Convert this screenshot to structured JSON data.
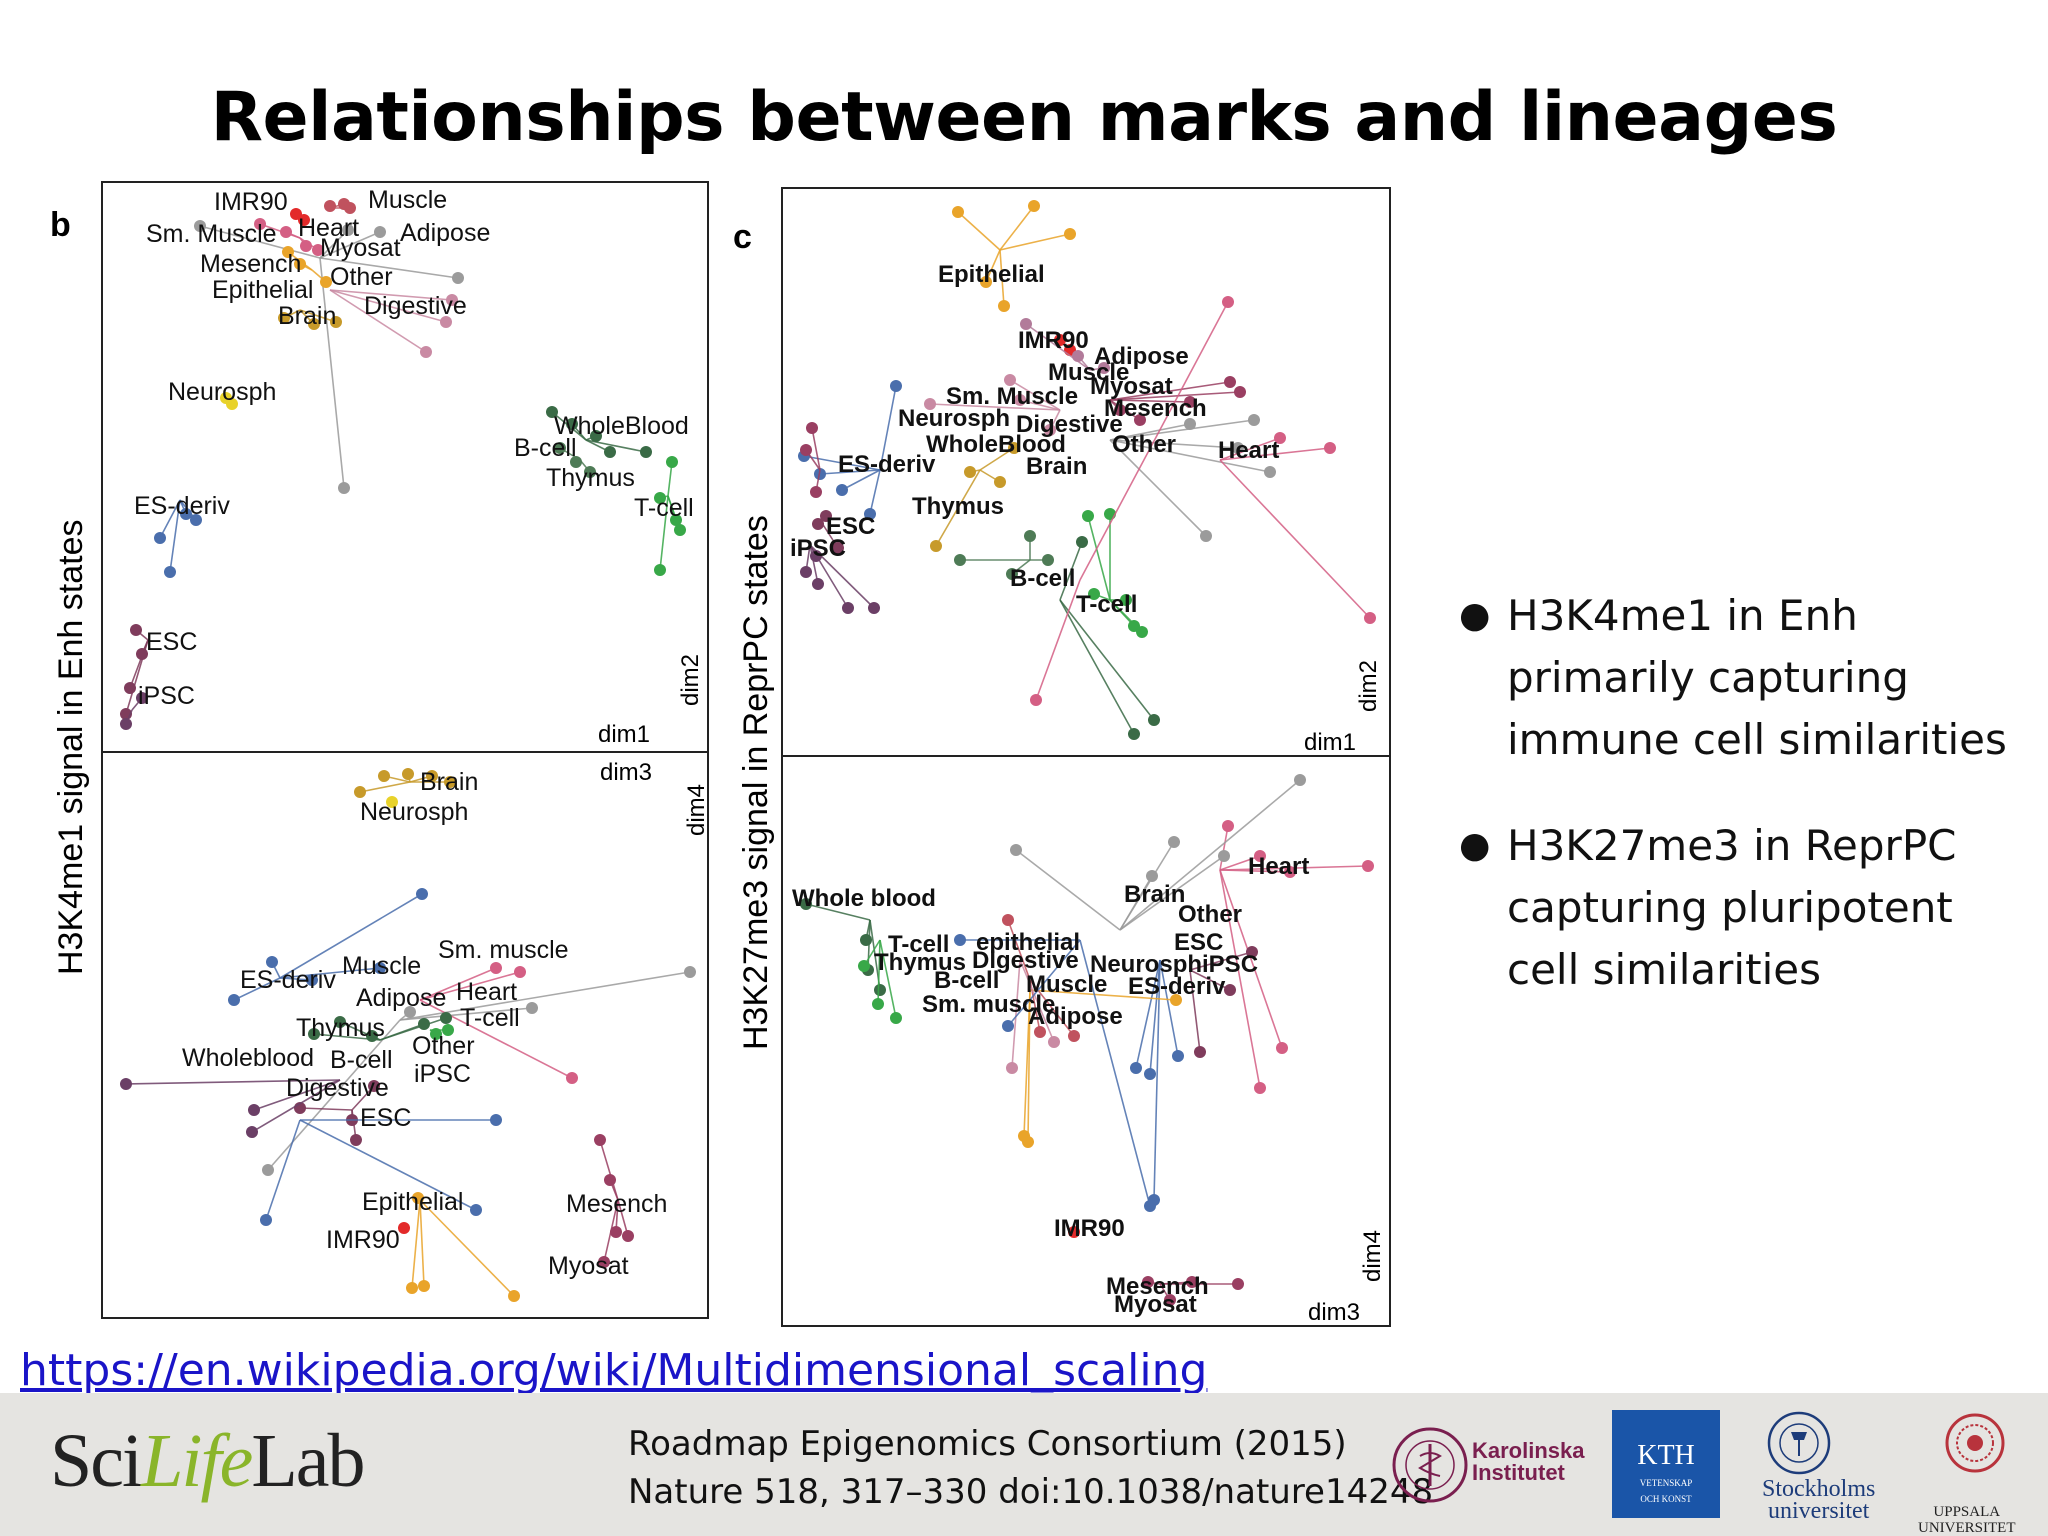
{
  "title": "Relationships between marks and lineages",
  "panel_b": {
    "letter": "b",
    "ylabel": "H3K4me1 signal in Enh states",
    "top": {
      "xaxis": "dim1",
      "yaxis": "dim2",
      "labels": [
        "IMR90",
        "Muscle",
        "Sm. Muscle",
        "Heart",
        "Adipose",
        "Myosat",
        "Mesench",
        "Other",
        "Epithelial",
        "Digestive",
        "Brain",
        "Neurosph",
        "WholeBlood",
        "B-cell",
        "Thymus",
        "T-cell",
        "ES-deriv",
        "ESC",
        "iPSC"
      ]
    },
    "bottom": {
      "xaxis": "dim3",
      "yaxis": "dim4",
      "labels": [
        "Brain",
        "Neurosph",
        "Sm. muscle",
        "ES-deriv",
        "Muscle",
        "Heart",
        "Adipose",
        "T-cell",
        "Thymus",
        "Other",
        "Wholeblood",
        "B-cell",
        "iPSC",
        "Digestive",
        "ESC",
        "Epithelial",
        "Mesench",
        "IMR90",
        "Myosat"
      ]
    }
  },
  "panel_c": {
    "letter": "c",
    "ylabel": "H3K27me3 signal in ReprPC states",
    "top": {
      "xaxis": "dim1",
      "yaxis": "dim2",
      "labels": [
        "Epithelial",
        "IMR90",
        "Adipose",
        "Muscle",
        "Sm. Muscle",
        "Myosat",
        "Mesench",
        "Neurosph",
        "Digestive",
        "WholeBlood",
        "Other",
        "Heart",
        "ES-deriv",
        "Brain",
        "Thymus",
        "ESC",
        "iPSC",
        "B-cell",
        "T-cell"
      ]
    },
    "bottom": {
      "xaxis": "dim3",
      "yaxis": "dim4",
      "labels": [
        "Heart",
        "Whole blood",
        "Brain",
        "Other",
        "T-cell",
        "epithelial",
        "ESC",
        "Thymus",
        "Digestive",
        "NeurosphiPSC",
        "B-cell",
        "Muscle",
        "ES-deriv",
        "Sm. muscle",
        "Adipose",
        "IMR90",
        "Mesench",
        "Myosat"
      ]
    }
  },
  "bullets": [
    "H3K4me1 in Enh primarily capturing immune cell similarities",
    "H3K27me3 in ReprPC capturing pluripotent cell similarities"
  ],
  "link": "https://en.wikipedia.org/wiki/Multidimensional_scaling",
  "citation": {
    "line1": "Roadmap Epigenomics Consortium (2015)",
    "line2": "Nature 518, 317–330 doi:10.1038/nature14248"
  },
  "logos": {
    "scilife_pre": "Sci",
    "scilife_mid": "Life",
    "scilife_post": "Lab",
    "ki_line1": "Karolinska",
    "ki_line2": "Institutet",
    "kth": "KTH",
    "kth_sub1": "VETENSKAP",
    "kth_sub2": "OCH KONST",
    "su_line1": "Stockholms",
    "su_line2": "universitet",
    "uu_line1": "UPPSALA",
    "uu_line2": "UNIVERSITET"
  },
  "colors": {
    "imr90": "#e32a2a",
    "muscle": "#c0525e",
    "adipose": "#b27b9a",
    "heart": "#d45f84",
    "myosat": "#b0596e",
    "mesench": "#9a3f62",
    "other": "#9b9b9b",
    "epithelial": "#e9a42a",
    "digestive": "#c98aa3",
    "brain": "#c79a2a",
    "neurosph": "#e8d22a",
    "blood": "#3a6b46",
    "bcell": "#4e7b56",
    "thymus": "#6b6b44",
    "tcell": "#38a848",
    "esderiv": "#4a6eac",
    "esc": "#7f3c5c",
    "ipsc": "#6b3f66",
    "link": "#1a14c8"
  }
}
